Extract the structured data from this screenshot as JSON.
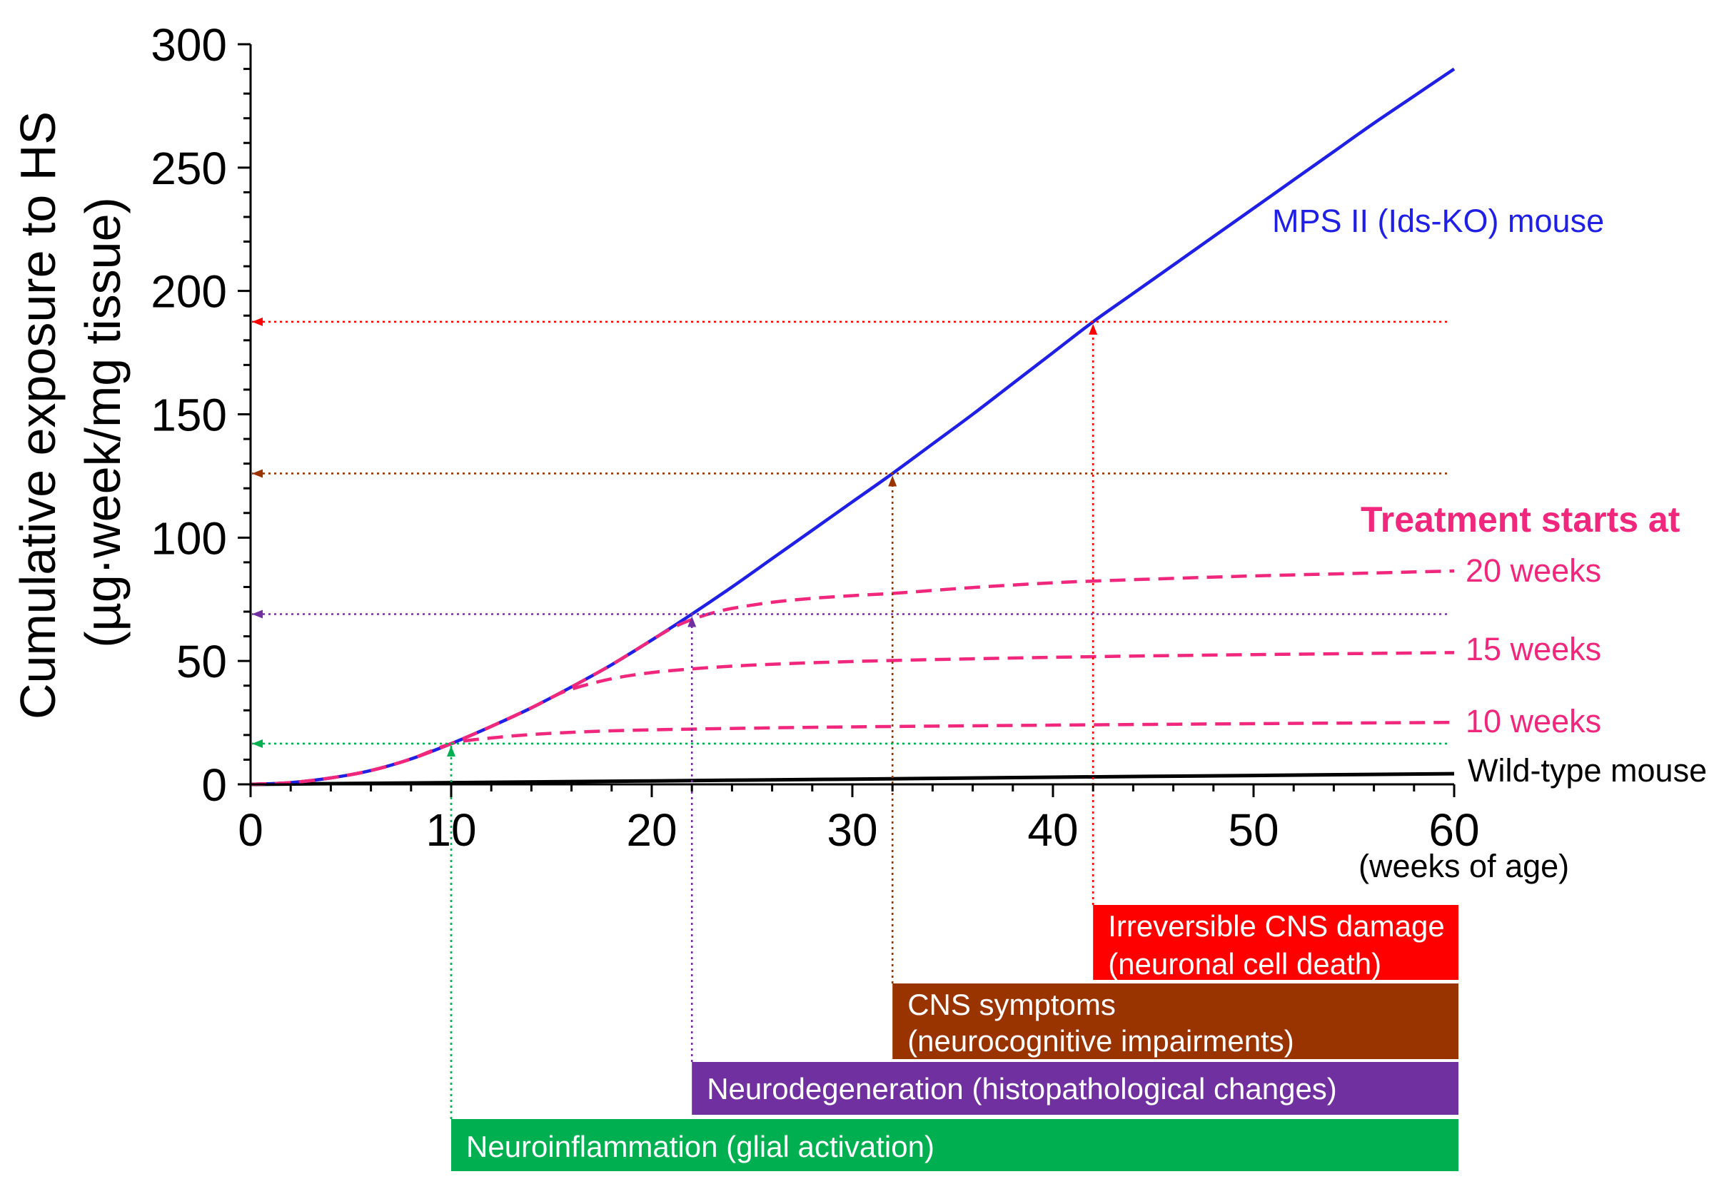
{
  "chart_data": {
    "type": "line",
    "ylabel": [
      "Cumulative exposure to HS",
      "(µg·week/mg tissue)"
    ],
    "xlabel": "(weeks of age)",
    "xlim": [
      0,
      60
    ],
    "ylim": [
      0,
      300
    ],
    "xticks": [
      0,
      10,
      20,
      30,
      40,
      50,
      60
    ],
    "yticks": [
      0,
      50,
      100,
      150,
      200,
      250,
      300
    ],
    "grid": false,
    "legend": false,
    "series": [
      {
        "name": "MPS II (Ids-KO) mouse",
        "color": "#1f1fe6",
        "dashed": false,
        "points": [
          [
            0,
            0
          ],
          [
            2,
            0.7
          ],
          [
            4,
            2.6
          ],
          [
            6,
            5.6
          ],
          [
            8,
            10.3
          ],
          [
            10,
            16.5
          ],
          [
            12,
            23.5
          ],
          [
            14,
            31
          ],
          [
            16,
            39.5
          ],
          [
            18,
            48.5
          ],
          [
            20,
            58.5
          ],
          [
            22,
            69
          ],
          [
            24,
            80
          ],
          [
            26,
            91.5
          ],
          [
            28,
            103
          ],
          [
            30,
            114.5
          ],
          [
            32,
            126
          ],
          [
            34,
            138
          ],
          [
            36,
            150
          ],
          [
            38,
            162.5
          ],
          [
            40,
            175
          ],
          [
            42,
            187.5
          ],
          [
            44,
            199
          ],
          [
            46,
            210.5
          ],
          [
            48,
            222
          ],
          [
            50,
            233.5
          ],
          [
            52,
            245
          ],
          [
            54,
            256.5
          ],
          [
            56,
            268
          ],
          [
            58,
            279
          ],
          [
            60,
            290
          ]
        ]
      },
      {
        "name": "Wild-type mouse",
        "color": "#000000",
        "dashed": false,
        "points": [
          [
            0,
            0
          ],
          [
            10,
            0.7
          ],
          [
            20,
            1.4
          ],
          [
            30,
            2.1
          ],
          [
            40,
            2.9
          ],
          [
            50,
            3.6
          ],
          [
            60,
            4.3
          ]
        ]
      },
      {
        "name": "20 weeks",
        "color": "#f0277c",
        "dashed": true,
        "points": [
          [
            0,
            0
          ],
          [
            2,
            0.7
          ],
          [
            4,
            2.6
          ],
          [
            6,
            5.6
          ],
          [
            8,
            10.3
          ],
          [
            10,
            16.5
          ],
          [
            12,
            23.5
          ],
          [
            14,
            31
          ],
          [
            16,
            39.5
          ],
          [
            18,
            48.5
          ],
          [
            20,
            58.5
          ],
          [
            21,
            63.3
          ],
          [
            22,
            66.8
          ],
          [
            23,
            69.4
          ],
          [
            24,
            71.3
          ],
          [
            26,
            73.8
          ],
          [
            28,
            75.4
          ],
          [
            30,
            76.5
          ],
          [
            32,
            77.4
          ],
          [
            34,
            78.6
          ],
          [
            36,
            79.8
          ],
          [
            38,
            80.8
          ],
          [
            40,
            81.7
          ],
          [
            42,
            82.4
          ],
          [
            46,
            83.5
          ],
          [
            50,
            84.5
          ],
          [
            55,
            85.5
          ],
          [
            60,
            86.5
          ]
        ]
      },
      {
        "name": "15 weeks",
        "color": "#f0277c",
        "dashed": true,
        "points": [
          [
            0,
            0
          ],
          [
            2,
            0.7
          ],
          [
            4,
            2.6
          ],
          [
            6,
            5.6
          ],
          [
            8,
            10.3
          ],
          [
            10,
            16.5
          ],
          [
            12,
            23.5
          ],
          [
            14,
            31
          ],
          [
            15,
            35.2
          ],
          [
            16,
            38.6
          ],
          [
            18,
            42.8
          ],
          [
            20,
            45.3
          ],
          [
            22,
            46.8
          ],
          [
            24,
            47.9
          ],
          [
            26,
            48.7
          ],
          [
            28,
            49.3
          ],
          [
            30,
            49.8
          ],
          [
            32,
            50.2
          ],
          [
            36,
            50.9
          ],
          [
            40,
            51.5
          ],
          [
            45,
            52.1
          ],
          [
            50,
            52.6
          ],
          [
            55,
            53
          ],
          [
            60,
            53.4
          ]
        ]
      },
      {
        "name": "10 weeks",
        "color": "#f0277c",
        "dashed": true,
        "points": [
          [
            0,
            0
          ],
          [
            2,
            0.7
          ],
          [
            4,
            2.6
          ],
          [
            6,
            5.6
          ],
          [
            8,
            10.3
          ],
          [
            10,
            16.5
          ],
          [
            12,
            18.8
          ],
          [
            14,
            20.2
          ],
          [
            16,
            21.1
          ],
          [
            18,
            21.7
          ],
          [
            20,
            22.1
          ],
          [
            22,
            22.4
          ],
          [
            26,
            22.9
          ],
          [
            30,
            23.3
          ],
          [
            40,
            24
          ],
          [
            50,
            24.6
          ],
          [
            60,
            25.1
          ]
        ]
      }
    ],
    "annotations": [
      {
        "text": "Treatment starts at",
        "color": "#f0277c"
      }
    ],
    "phases": [
      {
        "lines": [
          "Irreversible CNS damage",
          "(neuronal cell death)"
        ],
        "start": 42,
        "end": 60,
        "exposure": 187.5,
        "color": "#ff0000"
      },
      {
        "lines": [
          "CNS symptoms",
          "(neurocognitive impairments)"
        ],
        "start": 32,
        "end": 60,
        "exposure": 126,
        "color": "#993300"
      },
      {
        "lines": [
          "Neurodegeneration (histopathological changes)"
        ],
        "start": 22,
        "end": 60,
        "exposure": 69,
        "color": "#7030a0"
      },
      {
        "lines": [
          "Neuroinflammation (glial activation)"
        ],
        "start": 10,
        "end": 60,
        "exposure": 16.5,
        "color": "#00b050"
      }
    ]
  }
}
